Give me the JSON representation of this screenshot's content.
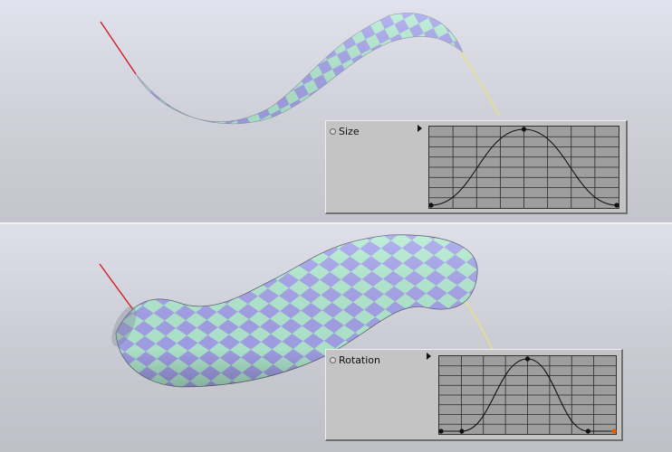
{
  "viewports": [
    {
      "panel": {
        "label": "Size",
        "curve": {
          "type": "spline",
          "points": [
            [
              0,
              0
            ],
            [
              0.5,
              1
            ],
            [
              1,
              0
            ]
          ]
        }
      }
    },
    {
      "panel": {
        "label": "Rotation",
        "curve": {
          "type": "spline",
          "points": [
            [
              0,
              0
            ],
            [
              0.12,
              0
            ],
            [
              0.5,
              1
            ],
            [
              0.85,
              0
            ],
            [
              1,
              0
            ]
          ]
        }
      }
    }
  ],
  "colors": {
    "checker_a": "#a6a4ec",
    "checker_b": "#b4ecd2",
    "guide_start": "#d21e1e",
    "guide_end": "#e6e08a",
    "graph_bg": "#9e9e9e",
    "grid": "#2a2a2a",
    "curve": "#111111",
    "end_knot_highlight": "#e06000"
  }
}
